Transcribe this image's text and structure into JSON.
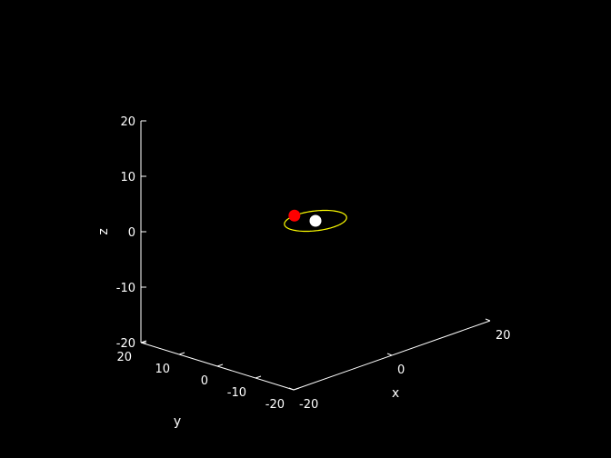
{
  "chart_data": {
    "type": "scatter",
    "projection": "3d",
    "background": "#000000",
    "axis_color": "#ffffff",
    "grid": false,
    "xlabel": "x",
    "ylabel": "y",
    "zlabel": "z",
    "xlim": [
      -20,
      20
    ],
    "ylim": [
      -20,
      20
    ],
    "zlim": [
      -20,
      20
    ],
    "x_ticks": [
      "-20",
      "0",
      "20"
    ],
    "y_ticks": [
      "-20",
      "-10",
      "0",
      "10",
      "20"
    ],
    "z_ticks": [
      "-20",
      "-10",
      "0",
      "10",
      "20"
    ],
    "orbit": {
      "shape": "circle",
      "center": [
        0,
        0,
        0
      ],
      "radius": 5,
      "color": "#ffff00"
    },
    "series": [
      {
        "marker": "circle",
        "color": "#ffffff",
        "x": [
          0
        ],
        "y": [
          0
        ],
        "z": [
          0
        ]
      },
      {
        "marker": "circle",
        "color": "#ff0000",
        "x": [
          -0.4
        ],
        "y": [
          5
        ],
        "z": [
          0
        ]
      }
    ]
  }
}
